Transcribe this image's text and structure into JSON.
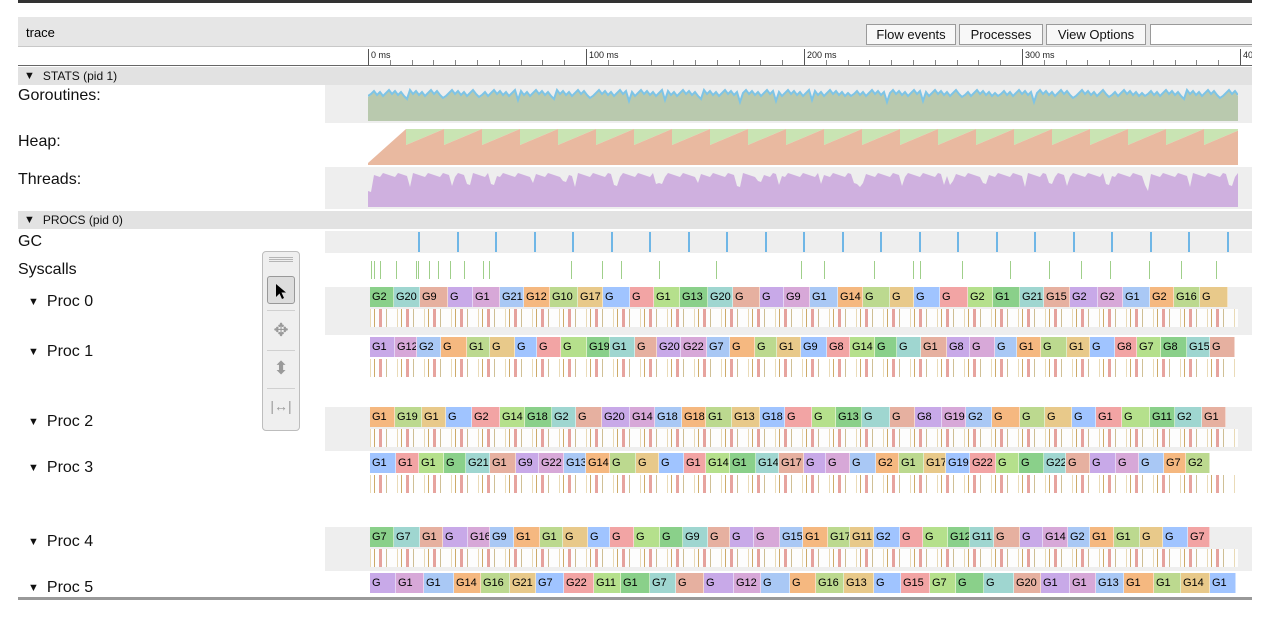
{
  "app": {
    "title": "trace"
  },
  "toolbar": {
    "flow_events": "Flow events",
    "processes": "Processes",
    "view_options": "View Options"
  },
  "ruler": {
    "labels": [
      "0 ms",
      "100 ms",
      "200 ms",
      "300 ms",
      "40"
    ]
  },
  "stats": {
    "header": "STATS (pid 1)",
    "rows": [
      "Goroutines:",
      "Heap:",
      "Threads:"
    ],
    "colors": {
      "goroutines_fill": "#b9c9ae",
      "goroutines_top": "#7ec4e6",
      "heap_used": "#e9b9a0",
      "heap_goal": "#c9e4b3",
      "threads": "#cfb0df"
    }
  },
  "procs": {
    "header": "PROCS (pid 0)",
    "gc_label": "GC",
    "syscalls_label": "Syscalls",
    "rows": [
      {
        "label": "Proc 0",
        "slices": [
          "G2",
          "G20",
          "G9",
          "G",
          "G1",
          "G21",
          "G12",
          "G10",
          "G17",
          "G",
          "G",
          "G1",
          "G13",
          "G20",
          "G",
          "G",
          "G9",
          "G1",
          "G14",
          "G",
          "G",
          "G",
          "G",
          "G2",
          "G1",
          "G21",
          "G15",
          "G2",
          "G2",
          "G1",
          "G2",
          "G16",
          "G"
        ]
      },
      {
        "label": "Proc 1",
        "slices": [
          "G1",
          "G12",
          "G2",
          "G",
          "G1",
          "G",
          "G",
          "G",
          "G",
          "G19",
          "G1",
          "G",
          "G20",
          "G22",
          "G7",
          "G",
          "G",
          "G1",
          "G9",
          "G8",
          "G14",
          "G",
          "G",
          "G1",
          "G8",
          "G",
          "G",
          "G1",
          "G",
          "G1",
          "G",
          "G8",
          "G7",
          "G8",
          "G15",
          "G"
        ]
      },
      {
        "label": "Proc 2",
        "slices": [
          "G1",
          "G19",
          "G1",
          "G",
          "G2",
          "G14",
          "G18",
          "G2",
          "G",
          "G20",
          "G14",
          "G18",
          "G18",
          "G1",
          "G13",
          "G18",
          "G",
          "G",
          "G13",
          "G",
          "G",
          "G8",
          "G19",
          "G2",
          "G",
          "G",
          "G",
          "G",
          "G1",
          "G",
          "G11",
          "G2",
          "G1"
        ]
      },
      {
        "label": "Proc 3",
        "slices": [
          "G1",
          "G1",
          "G1",
          "G",
          "G21",
          "G1",
          "G9",
          "G22",
          "G13",
          "G14",
          "G",
          "G",
          "G",
          "G1",
          "G14",
          "G1",
          "G14",
          "G17",
          "G",
          "G",
          "G",
          "G2",
          "G1",
          "G17",
          "G19",
          "G22",
          "G",
          "G",
          "G22",
          "G",
          "G",
          "G",
          "G",
          "G7",
          "G2"
        ]
      },
      {
        "label": "Proc 4",
        "slices": [
          "G7",
          "G7",
          "G1",
          "G",
          "G16",
          "G9",
          "G1",
          "G1",
          "G",
          "G",
          "G",
          "G",
          "G",
          "G9",
          "G",
          "G",
          "G",
          "G15",
          "G1",
          "G17",
          "G11",
          "G2",
          "G",
          "G",
          "G12",
          "G11",
          "G",
          "G",
          "G14",
          "G2",
          "G1",
          "G1",
          "G",
          "G",
          "G7"
        ]
      },
      {
        "label": "Proc 5",
        "slices": [
          "G",
          "G1",
          "G1",
          "G14",
          "G16",
          "G21",
          "G7",
          "G22",
          "G11",
          "G1",
          "G7",
          "G",
          "G",
          "G12",
          "G",
          "G",
          "G16",
          "G13",
          "G",
          "G15",
          "G7",
          "G",
          "G",
          "G20",
          "G1",
          "G1",
          "G13",
          "G1",
          "G1",
          "G14",
          "G1"
        ]
      }
    ]
  },
  "slice_palette": [
    "#8ad08a",
    "#a9c8f5",
    "#f2a4a4",
    "#c8a9e8",
    "#e8c98a",
    "#9fd6d0",
    "#f5b880",
    "#b5e08c",
    "#d7a8d8",
    "#a0c4ff",
    "#e6b0a0",
    "#bcd98f"
  ],
  "tools": {
    "select": "select-tool",
    "pan": "pan-tool",
    "zoom": "zoom-tool",
    "timing": "timing-tool"
  }
}
